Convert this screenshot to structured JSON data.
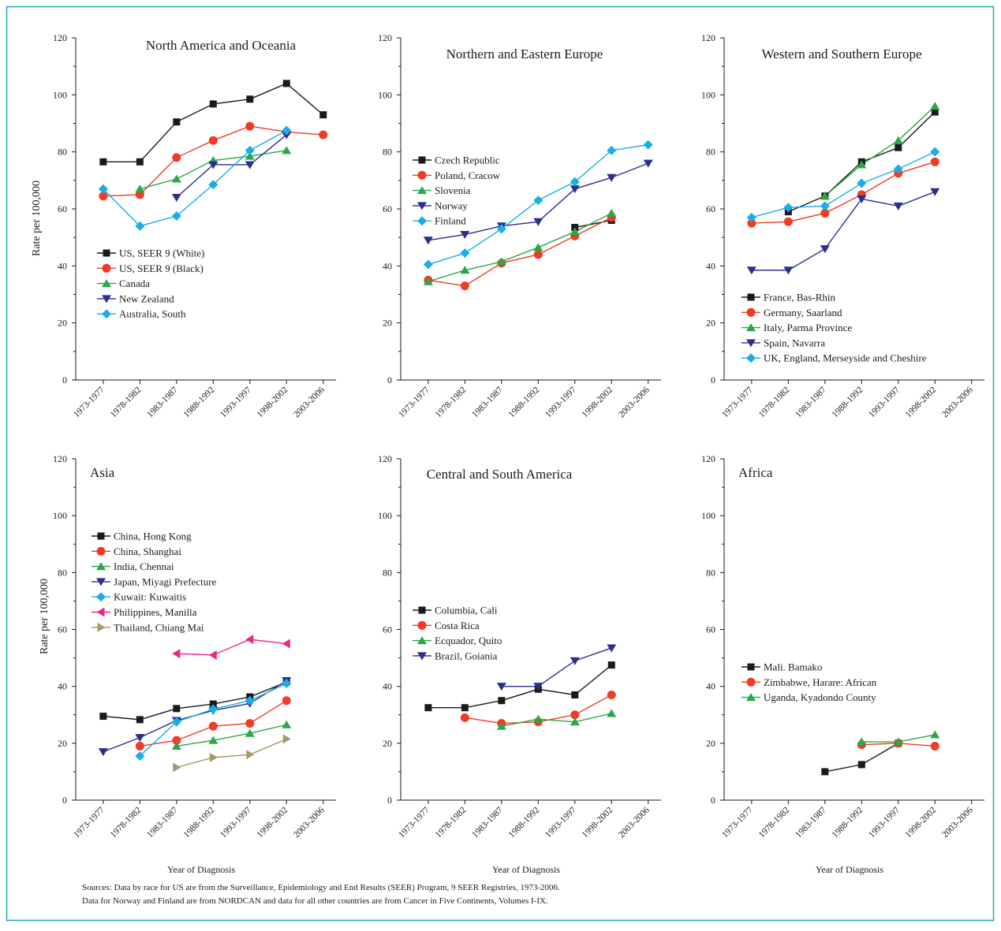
{
  "colors": {
    "frame": "#1aa7ad",
    "black": "#1a1a1a",
    "red": "#f03c24",
    "green": "#29a84a",
    "navy": "#2c2e8f",
    "cyan": "#19aee8",
    "magenta": "#e8298a",
    "olive": "#a5986a"
  },
  "footer": {
    "line1": "Sources: Data by race for US are from the Surveillance, Epidemiology and End Results (SEER) Program, 9 SEER Registries, 1973-2006.",
    "line2": "Data for Norway and Finland are from NORDCAN and data for all other countries are from Cancer in Five Continents, Volumes I-IX."
  },
  "chart_data": [
    {
      "type": "line",
      "title": "North America and Oceania",
      "ylabel": "Rate per 100,000",
      "xlabel": "",
      "ylim": [
        0,
        120
      ],
      "yticks": [
        0,
        20,
        40,
        60,
        80,
        100,
        120
      ],
      "categories": [
        "1973-1977",
        "1978-1982",
        "1983-1987",
        "1988-1992",
        "1993-1997",
        "1998-2002",
        "2003-2006"
      ],
      "legend_position": "lower-left",
      "series": [
        {
          "name": "US, SEER 9 (White)",
          "color": "#1a1a1a",
          "marker": "square",
          "values": [
            76.5,
            76.5,
            90.5,
            96.8,
            98.5,
            104,
            93
          ]
        },
        {
          "name": "US, SEER 9 (Black)",
          "color": "#f03c24",
          "marker": "circle",
          "values": [
            64.5,
            65,
            78,
            84,
            89,
            87,
            86
          ]
        },
        {
          "name": "Canada",
          "color": "#29a84a",
          "marker": "triangle-up",
          "values": [
            null,
            67,
            70.5,
            77,
            78.5,
            80.5,
            null
          ]
        },
        {
          "name": "New Zealand",
          "color": "#2c2e8f",
          "marker": "triangle-down",
          "values": [
            null,
            null,
            64,
            75.5,
            75.5,
            86,
            null
          ]
        },
        {
          "name": "Australia, South",
          "color": "#19aee8",
          "marker": "diamond",
          "values": [
            67,
            54,
            57.5,
            68.5,
            80.5,
            87.5,
            null
          ]
        }
      ]
    },
    {
      "type": "line",
      "title": "Northern and Eastern Europe",
      "ylabel": "",
      "xlabel": "",
      "ylim": [
        0,
        120
      ],
      "yticks": [
        0,
        20,
        40,
        60,
        80,
        100,
        120
      ],
      "categories": [
        "1973-1977",
        "1978-1982",
        "1983-1987",
        "1988-1992",
        "1993-1997",
        "1998-2002",
        "2003-2006"
      ],
      "legend_position": "upper-left",
      "series": [
        {
          "name": "Czech Republic",
          "color": "#1a1a1a",
          "marker": "square",
          "values": [
            null,
            null,
            null,
            null,
            53.5,
            56,
            null
          ]
        },
        {
          "name": "Poland, Cracow",
          "color": "#f03c24",
          "marker": "circle",
          "values": [
            35,
            33,
            41,
            44,
            50.5,
            57,
            null
          ]
        },
        {
          "name": "Slovenia",
          "color": "#29a84a",
          "marker": "triangle-up",
          "values": [
            34.5,
            38.5,
            41.5,
            46.5,
            52,
            58.5,
            null
          ]
        },
        {
          "name": "Norway",
          "color": "#2c2e8f",
          "marker": "triangle-down",
          "values": [
            49,
            51,
            54,
            55.5,
            67,
            71,
            76
          ]
        },
        {
          "name": "Finland",
          "color": "#19aee8",
          "marker": "diamond",
          "values": [
            40.5,
            44.5,
            53,
            63,
            69.5,
            80.5,
            82.5
          ]
        }
      ]
    },
    {
      "type": "line",
      "title": "Western and Southern Europe",
      "ylabel": "",
      "xlabel": "",
      "ylim": [
        0,
        120
      ],
      "yticks": [
        0,
        20,
        40,
        60,
        80,
        100,
        120
      ],
      "categories": [
        "1973-1977",
        "1978-1982",
        "1983-1987",
        "1988-1992",
        "1993-1997",
        "1998-2002",
        "2003-2006"
      ],
      "legend_position": "lower-left",
      "series": [
        {
          "name": "France, Bas-Rhin",
          "color": "#1a1a1a",
          "marker": "square",
          "values": [
            null,
            59,
            64.5,
            76.5,
            81.5,
            94,
            null
          ]
        },
        {
          "name": "Germany, Saarland",
          "color": "#f03c24",
          "marker": "circle",
          "values": [
            55,
            55.5,
            58.5,
            65,
            72.5,
            76.5,
            null
          ]
        },
        {
          "name": "Italy, Parma Province",
          "color": "#29a84a",
          "marker": "triangle-up",
          "values": [
            null,
            null,
            64.5,
            75.5,
            84,
            96,
            null
          ]
        },
        {
          "name": "Spain, Navarra",
          "color": "#2c2e8f",
          "marker": "triangle-down",
          "values": [
            38.5,
            38.5,
            46,
            63.5,
            61,
            66,
            null
          ]
        },
        {
          "name": "UK, England, Merseyside and Cheshire",
          "color": "#19aee8",
          "marker": "diamond",
          "values": [
            57,
            60.5,
            61,
            69,
            74,
            80,
            null
          ]
        }
      ]
    },
    {
      "type": "line",
      "title": "Asia",
      "ylabel": "Rate per 100,000",
      "xlabel": "Year of Diagnosis",
      "ylim": [
        0,
        120
      ],
      "yticks": [
        0,
        20,
        40,
        60,
        80,
        100,
        120
      ],
      "categories": [
        "1973-1977",
        "1978-1982",
        "1983-1987",
        "1988-1992",
        "1993-1997",
        "1998-2002",
        "2003-2006"
      ],
      "legend_position": "upper-left",
      "series": [
        {
          "name": "China, Hong Kong",
          "color": "#1a1a1a",
          "marker": "square",
          "values": [
            29.5,
            28.3,
            32.2,
            33.8,
            36.3,
            41.5,
            null
          ]
        },
        {
          "name": "China, Shanghai",
          "color": "#f03c24",
          "marker": "circle",
          "values": [
            null,
            19,
            21,
            26,
            27,
            35,
            null
          ]
        },
        {
          "name": "India, Chennai",
          "color": "#29a84a",
          "marker": "triangle-up",
          "values": [
            null,
            null,
            19,
            21,
            23.5,
            26.5,
            null
          ]
        },
        {
          "name": "Japan, Miyagi Prefecture",
          "color": "#2c2e8f",
          "marker": "triangle-down",
          "values": [
            17,
            22,
            28,
            31.5,
            34,
            42,
            null
          ]
        },
        {
          "name": "Kuwait: Kuwaitis",
          "color": "#19aee8",
          "marker": "diamond",
          "values": [
            null,
            15.5,
            27.5,
            32,
            35,
            41,
            null
          ]
        },
        {
          "name": "Philippines, Manilla",
          "color": "#e8298a",
          "marker": "triangle-left",
          "values": [
            null,
            null,
            51.5,
            51,
            56.5,
            55,
            null
          ]
        },
        {
          "name": "Thailand, Chiang Mai",
          "color": "#a5986a",
          "marker": "triangle-right",
          "values": [
            null,
            null,
            11.5,
            15,
            16,
            21.5,
            null
          ]
        }
      ]
    },
    {
      "type": "line",
      "title": "Central and South America",
      "ylabel": "",
      "xlabel": "Year of Diagnosis",
      "ylim": [
        0,
        120
      ],
      "yticks": [
        0,
        20,
        40,
        60,
        80,
        100,
        120
      ],
      "categories": [
        "1973-1977",
        "1978-1982",
        "1983-1987",
        "1988-1992",
        "1993-1997",
        "1998-2002",
        "2003-2006"
      ],
      "legend_position": "center-left",
      "series": [
        {
          "name": "Columbia, Cali",
          "color": "#1a1a1a",
          "marker": "square",
          "values": [
            32.5,
            32.5,
            35,
            39,
            37,
            47.5,
            null
          ]
        },
        {
          "name": "Costa Rica",
          "color": "#f03c24",
          "marker": "circle",
          "values": [
            null,
            29,
            27,
            27.5,
            30,
            37,
            null
          ]
        },
        {
          "name": "Ecquador, Quito",
          "color": "#29a84a",
          "marker": "triangle-up",
          "values": [
            null,
            null,
            26,
            28.5,
            27.5,
            30.5,
            null
          ]
        },
        {
          "name": "Brazil, Goiania",
          "color": "#2c2e8f",
          "marker": "triangle-down",
          "values": [
            null,
            null,
            40,
            40,
            49,
            53.5,
            null
          ]
        }
      ]
    },
    {
      "type": "line",
      "title": "Africa",
      "ylabel": "",
      "xlabel": "Year of Diagnosis",
      "ylim": [
        0,
        120
      ],
      "yticks": [
        0,
        20,
        40,
        60,
        80,
        100,
        120
      ],
      "categories": [
        "1973-1977",
        "1978-1982",
        "1983-1987",
        "1988-1992",
        "1993-1997",
        "1998-2002",
        "2003-2006"
      ],
      "legend_position": "center-left",
      "series": [
        {
          "name": "Mali. Bamako",
          "color": "#1a1a1a",
          "marker": "square",
          "values": [
            null,
            null,
            10,
            12.5,
            20,
            null,
            null
          ]
        },
        {
          "name": "Zimbabwe, Harare: African",
          "color": "#f03c24",
          "marker": "circle",
          "values": [
            null,
            null,
            null,
            19.5,
            20,
            19,
            null
          ]
        },
        {
          "name": "Uganda, Kyadondo County",
          "color": "#29a84a",
          "marker": "triangle-up",
          "values": [
            null,
            null,
            null,
            20.5,
            20.5,
            23,
            null
          ]
        }
      ]
    }
  ]
}
